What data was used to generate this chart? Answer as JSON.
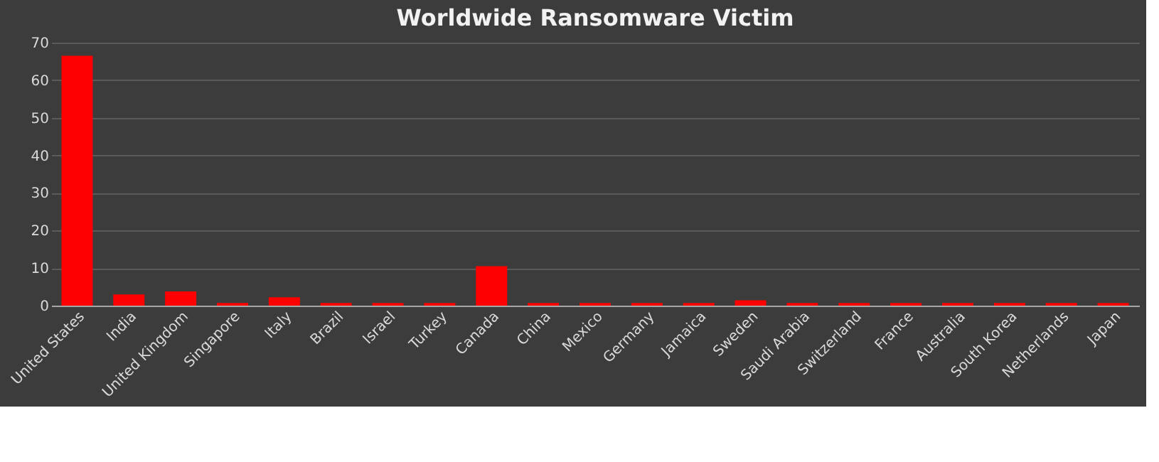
{
  "chart_data": {
    "type": "bar",
    "title": "Worldwide Ransomware Victim",
    "categories": [
      "United States",
      "India",
      "United Kingdom",
      "Singapore",
      "Italy",
      "Brazil",
      "Israel",
      "Turkey",
      "Canada",
      "China",
      "Mexico",
      "Germany",
      "Jamaica",
      "Sweden",
      "Saudi Arabia",
      "Switzerland",
      "France",
      "Australia",
      "South Korea",
      "Netherlands",
      "Japan"
    ],
    "values": [
      66.5,
      3,
      3.8,
      0.7,
      2.2,
      0.7,
      0.7,
      0.7,
      10.5,
      0.7,
      0.7,
      0.7,
      0.7,
      1.4,
      0.7,
      0.7,
      0.7,
      0.7,
      0.7,
      0.7,
      0.7
    ],
    "color": "#ff0000",
    "ylim": [
      0,
      70
    ],
    "yticks": [
      0,
      10,
      20,
      30,
      40,
      50,
      60,
      70
    ],
    "grid": "y"
  }
}
